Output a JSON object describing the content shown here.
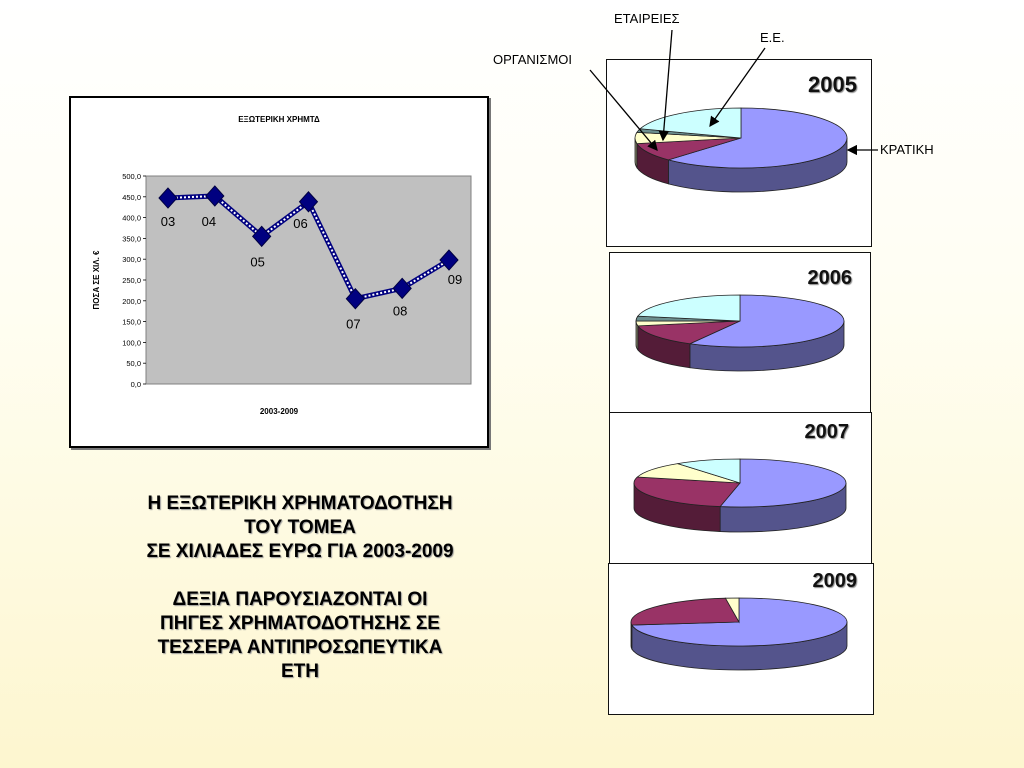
{
  "line_chart": {
    "title": "ΕΞΩΤΕΡΙΚΗ ΧΡΗΜΤΔ",
    "ylabel": "ΠΟΣΑ ΣΕ ΧΙΛ. €",
    "xlabel": "2003-2009",
    "y_ticks": [
      "0,0",
      "50,0",
      "100,0",
      "150,0",
      "200,0",
      "250,0",
      "300,0",
      "350,0",
      "400,0",
      "450,0",
      "500,0"
    ]
  },
  "caption": {
    "line1": "Η ΕΞΩΤΕΡΙΚΗ ΧΡΗΜΑΤΟΔΟΤΗΣΗ",
    "line2": "ΤΟΥ ΤΟΜΕΑ",
    "line3": "ΣΕ ΧΙΛΙΑΔΕΣ ΕΥΡΩ ΓΙΑ 2003-2009",
    "line4": "ΔΕΞΙΑ ΠΑΡΟΥΣΙΑΖΟΝΤΑΙ ΟΙ",
    "line5": "ΠΗΓΕΣ ΧΡΗΜΑΤΟΔΟΤΗΣΗΣ ΣΕ",
    "line6": "ΤΕΣΣΕΡΑ ΑΝΤΙΠΡΟΣΩΠΕΥΤΙΚΑ",
    "line7": "ΕΤΗ"
  },
  "callouts": {
    "etaireies": "ΕΤΑΙΡΕΙΕΣ",
    "ee": "Ε.Ε.",
    "organismoi": "ΟΡΓΑΝΙΣΜΟΙ",
    "kratiki": "ΚΡΑΤΙΚΗ"
  },
  "pie_colors": {
    "ΚΡΑΤΙΚΗ": "#9999ff",
    "ΟΡΓΑΝΙΣΜΟΙ": "#993366",
    "ΕΤΑΙΡΕΙΕΣ": "#ffffcc",
    "Ε.Ε.": "#ccffff",
    "other": "#6b8e8e"
  },
  "chart_data": [
    {
      "type": "line",
      "title": "ΕΞΩΤΕΡΙΚΗ ΧΡΗΜΤΔ",
      "xlabel": "2003-2009",
      "ylabel": "ΠΟΣΑ ΣΕ ΧΙΛ. €",
      "ylim": [
        0,
        500
      ],
      "grid": false,
      "x": [
        "03",
        "04",
        "05",
        "06",
        "07",
        "08",
        "09"
      ],
      "values": [
        447,
        452,
        355,
        438,
        205,
        230,
        298
      ]
    },
    {
      "type": "pie",
      "title": "2005",
      "categories": [
        "ΚΡΑΤΙΚΗ",
        "ΟΡΓΑΝΙΣΜΟΙ",
        "ΕΤΑΙΡΕΙΕΣ",
        "other",
        "Ε.Ε."
      ],
      "values": [
        62,
        10,
        6,
        2,
        20
      ]
    },
    {
      "type": "pie",
      "title": "2006",
      "categories": [
        "ΚΡΑΤΙΚΗ",
        "ΟΡΓΑΝΙΣΜΟΙ",
        "ΕΤΑΙΡΕΙΕΣ",
        "other",
        "Ε.Ε."
      ],
      "values": [
        58,
        14,
        3,
        3,
        22
      ]
    },
    {
      "type": "pie",
      "title": "2007",
      "categories": [
        "ΚΡΑΤΙΚΗ",
        "ΟΡΓΑΝΙΣΜΟΙ",
        "ΕΤΑΙΡΕΙΕΣ",
        "Ε.Ε."
      ],
      "values": [
        53,
        26,
        11,
        10
      ]
    },
    {
      "type": "pie",
      "title": "2009",
      "categories": [
        "ΚΡΑΤΙΚΗ",
        "ΟΡΓΑΝΙΣΜΟΙ",
        "ΕΤΑΙΡΕΙΕΣ"
      ],
      "values": [
        73,
        25,
        2
      ]
    }
  ]
}
